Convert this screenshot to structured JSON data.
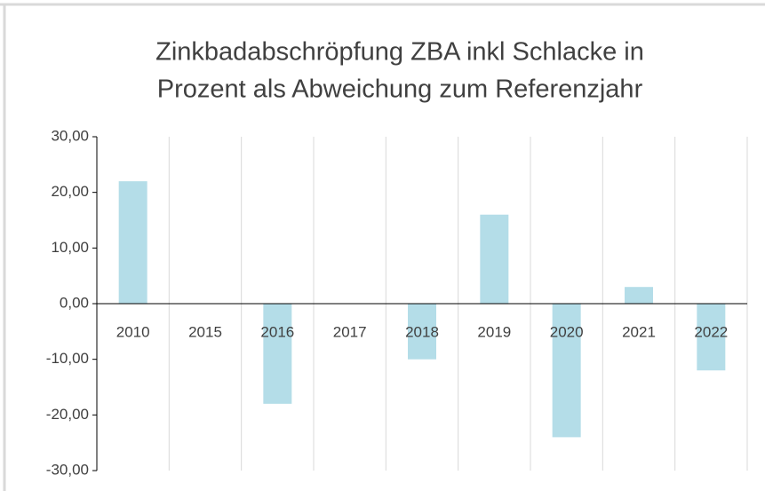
{
  "chart_data": {
    "type": "bar",
    "title": [
      "Zinkbadabschröpfung ZBA inkl Schlacke in",
      "Prozent als Abweichung zum Referenzjahr"
    ],
    "categories": [
      "2010",
      "2015",
      "2016",
      "2017",
      "2018",
      "2019",
      "2020",
      "2021",
      "2022"
    ],
    "values": [
      22,
      0,
      -18,
      0,
      -10,
      16,
      -24,
      3,
      -12
    ],
    "color": "#b4dde8",
    "ylim": [
      -30,
      30
    ],
    "yticks": [
      {
        "value": 30,
        "label": "30,00"
      },
      {
        "value": 20,
        "label": "20,00"
      },
      {
        "value": 10,
        "label": "10,00"
      },
      {
        "value": 0,
        "label": "0,00"
      },
      {
        "value": -10,
        "label": "-10,00"
      },
      {
        "value": -20,
        "label": "-20,00"
      },
      {
        "value": -30,
        "label": "-30,00"
      }
    ],
    "grid": false
  }
}
